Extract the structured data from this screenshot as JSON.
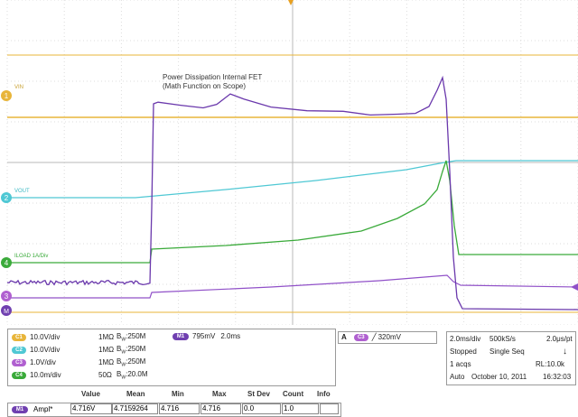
{
  "colors": {
    "ch1": "#e8b53a",
    "ch2": "#4fc8d4",
    "ch3": "#7a40b4",
    "ch4": "#3aaa3a",
    "math": "#7040b0",
    "grid": "#d0d0d0",
    "axis": "#b0b0b0"
  },
  "waveform": {
    "annotation_line1": "Power Dissipation Internal FET",
    "annotation_line2": "(Math Function on Scope)",
    "label_vin": "VIN",
    "label_vout": "VOUT",
    "label_iload": "ILOAD  1A/Div",
    "marker_1": "1",
    "marker_2": "2",
    "marker_4": "4",
    "marker_3": "3",
    "marker_m": "M"
  },
  "channels": [
    {
      "badge": "C1",
      "scale": "10.0V/div",
      "coupling": "1MΩ",
      "bw": "250M"
    },
    {
      "badge": "C2",
      "scale": "10.0V/div",
      "coupling": "1MΩ",
      "bw": "250M"
    },
    {
      "badge": "C3",
      "scale": "1.0V/div",
      "coupling": "1MΩ",
      "bw": "250M"
    },
    {
      "badge": "C4",
      "scale": "10.0m/div",
      "coupling": "50Ω",
      "bw": "20.0M"
    }
  ],
  "bw_prefix": "B",
  "bw_sub": "W",
  "math_box": {
    "badge": "M1",
    "scale": "795mV",
    "time": "2.0ms"
  },
  "trigger_box": {
    "label": "A",
    "badge": "C3",
    "slope": "╱",
    "level": "320mV"
  },
  "acq_box": {
    "timebase": "2.0ms/div",
    "sample_rate": "500kS/s",
    "per_point": "2.0μs/pt",
    "status": "Stopped",
    "mode": "Single Seq",
    "acqs": "1 acqs",
    "rl": "RL:10.0k",
    "auto": "Auto",
    "date": "October 10, 2011",
    "time": "16:32:03",
    "arrow": "↓"
  },
  "measurement_table": {
    "headers": [
      "Value",
      "Mean",
      "Min",
      "Max",
      "St Dev",
      "Count",
      "Info"
    ],
    "row": {
      "badge": "M1",
      "name": "Ampl*",
      "values": [
        "4.716V",
        "4.7159264",
        "4.716",
        "4.716",
        "0.0",
        "1.0",
        ""
      ]
    }
  }
}
